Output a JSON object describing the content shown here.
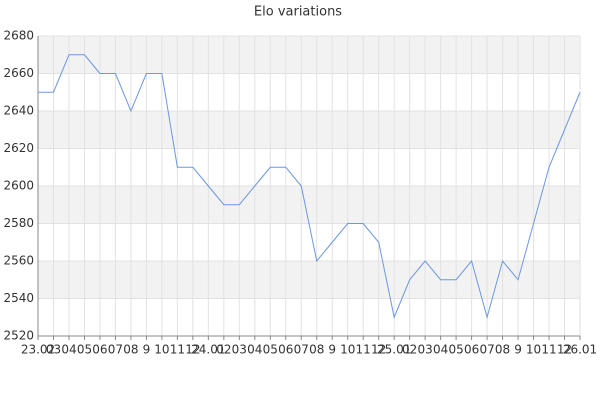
{
  "chart_data": {
    "type": "line",
    "title": "Elo variations",
    "categories": [
      "23.02",
      "03",
      "04",
      "05",
      "06",
      "07",
      "08",
      "9",
      "10",
      "11",
      "12",
      "24.01",
      "02",
      "03",
      "04",
      "05",
      "06",
      "07",
      "08",
      "9",
      "10",
      "11",
      "12",
      "25.01",
      "02",
      "03",
      "04",
      "05",
      "06",
      "07",
      "08",
      "9",
      "10",
      "11",
      "12",
      "26.01"
    ],
    "values": [
      2650,
      2650,
      2670,
      2670,
      2660,
      2660,
      2640,
      2660,
      2660,
      2610,
      2610,
      2600,
      2590,
      2590,
      2600,
      2610,
      2610,
      2600,
      2560,
      2570,
      2580,
      2580,
      2570,
      2530,
      2550,
      2560,
      2550,
      2550,
      2560,
      2530,
      2560,
      2550,
      2580,
      2610,
      2630,
      2650
    ],
    "color": "#6a98e0",
    "ylim": [
      2520,
      2680
    ],
    "yticks": [
      2520,
      2540,
      2560,
      2580,
      2600,
      2620,
      2640,
      2660,
      2680
    ],
    "grid": true
  }
}
